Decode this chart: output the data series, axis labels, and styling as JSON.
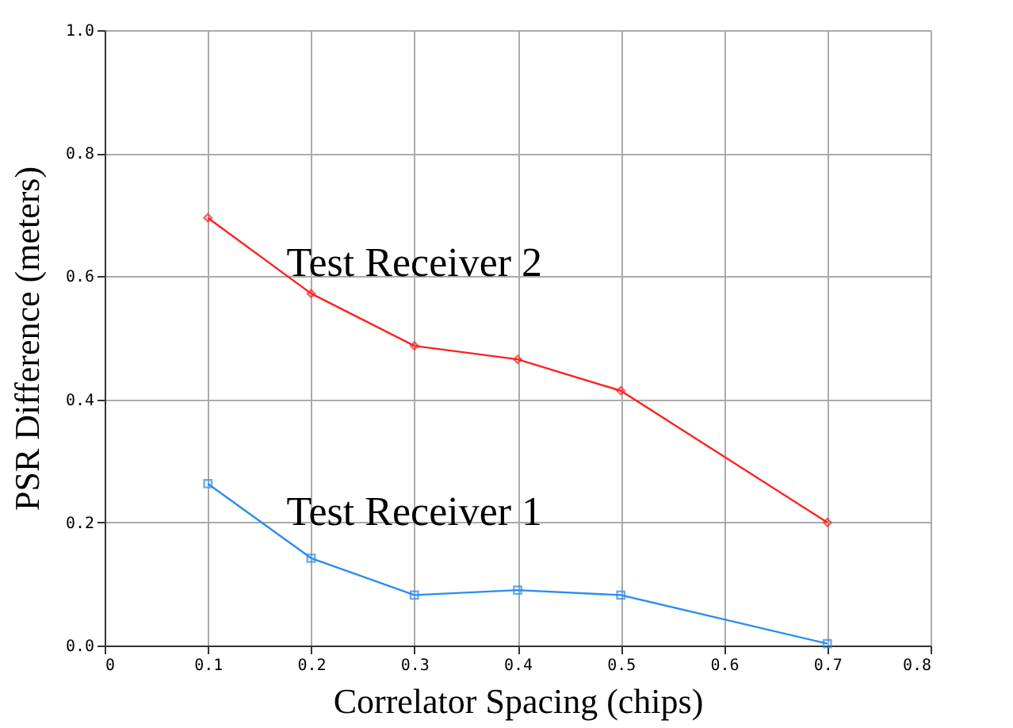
{
  "chart_data": {
    "type": "line",
    "xlabel": "Correlator Spacing (chips)",
    "ylabel": "PSR Difference (meters)",
    "xlim": [
      0,
      0.8
    ],
    "xticks": [
      0,
      0.1,
      0.2,
      0.3,
      0.4,
      0.5,
      0.6,
      0.7,
      0.8
    ],
    "ylim": [
      0,
      1.0
    ],
    "yticks": [
      {
        "value": 0,
        "label": "0.0"
      },
      0.2,
      0.4,
      0.6,
      0.8,
      {
        "value": 1.0,
        "label": "1.0"
      }
    ],
    "grid": true,
    "series": [
      {
        "name": "Test Receiver 2",
        "color": "#ff2020",
        "marker": "diamond",
        "x": [
          0.1,
          0.2,
          0.3,
          0.4,
          0.5,
          0.7
        ],
        "values": [
          0.695,
          0.572,
          0.487,
          0.465,
          0.414,
          0.2
        ]
      },
      {
        "name": "Test Receiver 1",
        "color": "#2a8cf0",
        "marker": "square",
        "x": [
          0.1,
          0.2,
          0.3,
          0.4,
          0.5,
          0.7
        ],
        "values": [
          0.263,
          0.142,
          0.082,
          0.09,
          0.082,
          0.003
        ]
      }
    ]
  }
}
